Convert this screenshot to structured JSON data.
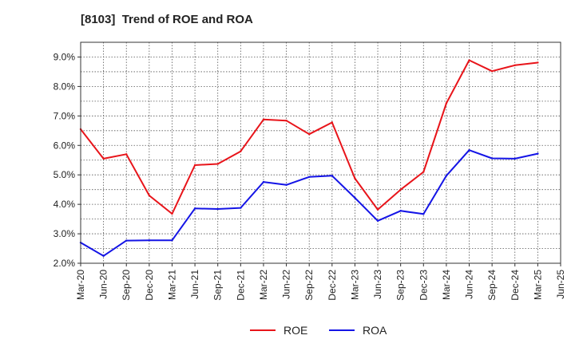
{
  "chart_data": {
    "type": "line",
    "title": "[8103]  Trend of ROE and ROA",
    "xlabel": "",
    "ylabel": "",
    "x_ticks": [
      "Mar-20",
      "Jun-20",
      "Sep-20",
      "Dec-20",
      "Mar-21",
      "Jun-21",
      "Sep-21",
      "Dec-21",
      "Mar-22",
      "Jun-22",
      "Sep-22",
      "Dec-22",
      "Mar-23",
      "Jun-23",
      "Sep-23",
      "Dec-23",
      "Mar-24",
      "Jun-24",
      "Sep-24",
      "Dec-24",
      "Mar-25",
      "Jun-25"
    ],
    "y_ticks": [
      "2.0%",
      "3.0%",
      "4.0%",
      "5.0%",
      "6.0%",
      "7.0%",
      "8.0%",
      "9.0%"
    ],
    "ylim": [
      2.0,
      9.5
    ],
    "grid": true,
    "legend_position": "bottom-center",
    "categories": [
      "Mar-20",
      "Jun-20",
      "Sep-20",
      "Dec-20",
      "Mar-21",
      "Jun-21",
      "Sep-21",
      "Dec-21",
      "Mar-22",
      "Jun-22",
      "Sep-22",
      "Dec-22",
      "Mar-23",
      "Jun-23",
      "Sep-23",
      "Dec-23",
      "Mar-24",
      "Jun-24",
      "Sep-24",
      "Dec-24",
      "Mar-25"
    ],
    "series": [
      {
        "name": "ROE",
        "color": "#e8141a",
        "values": [
          6.55,
          5.55,
          5.7,
          4.3,
          3.68,
          5.33,
          5.37,
          5.8,
          6.88,
          6.84,
          6.38,
          6.78,
          4.88,
          3.82,
          4.5,
          5.1,
          7.43,
          8.89,
          8.52,
          8.72,
          8.81
        ]
      },
      {
        "name": "ROA",
        "color": "#1414e6",
        "values": [
          2.7,
          2.25,
          2.77,
          2.78,
          2.78,
          3.86,
          3.84,
          3.88,
          4.76,
          4.66,
          4.93,
          4.97,
          4.22,
          3.44,
          3.78,
          3.67,
          4.97,
          5.84,
          5.56,
          5.55,
          5.72
        ]
      }
    ]
  }
}
